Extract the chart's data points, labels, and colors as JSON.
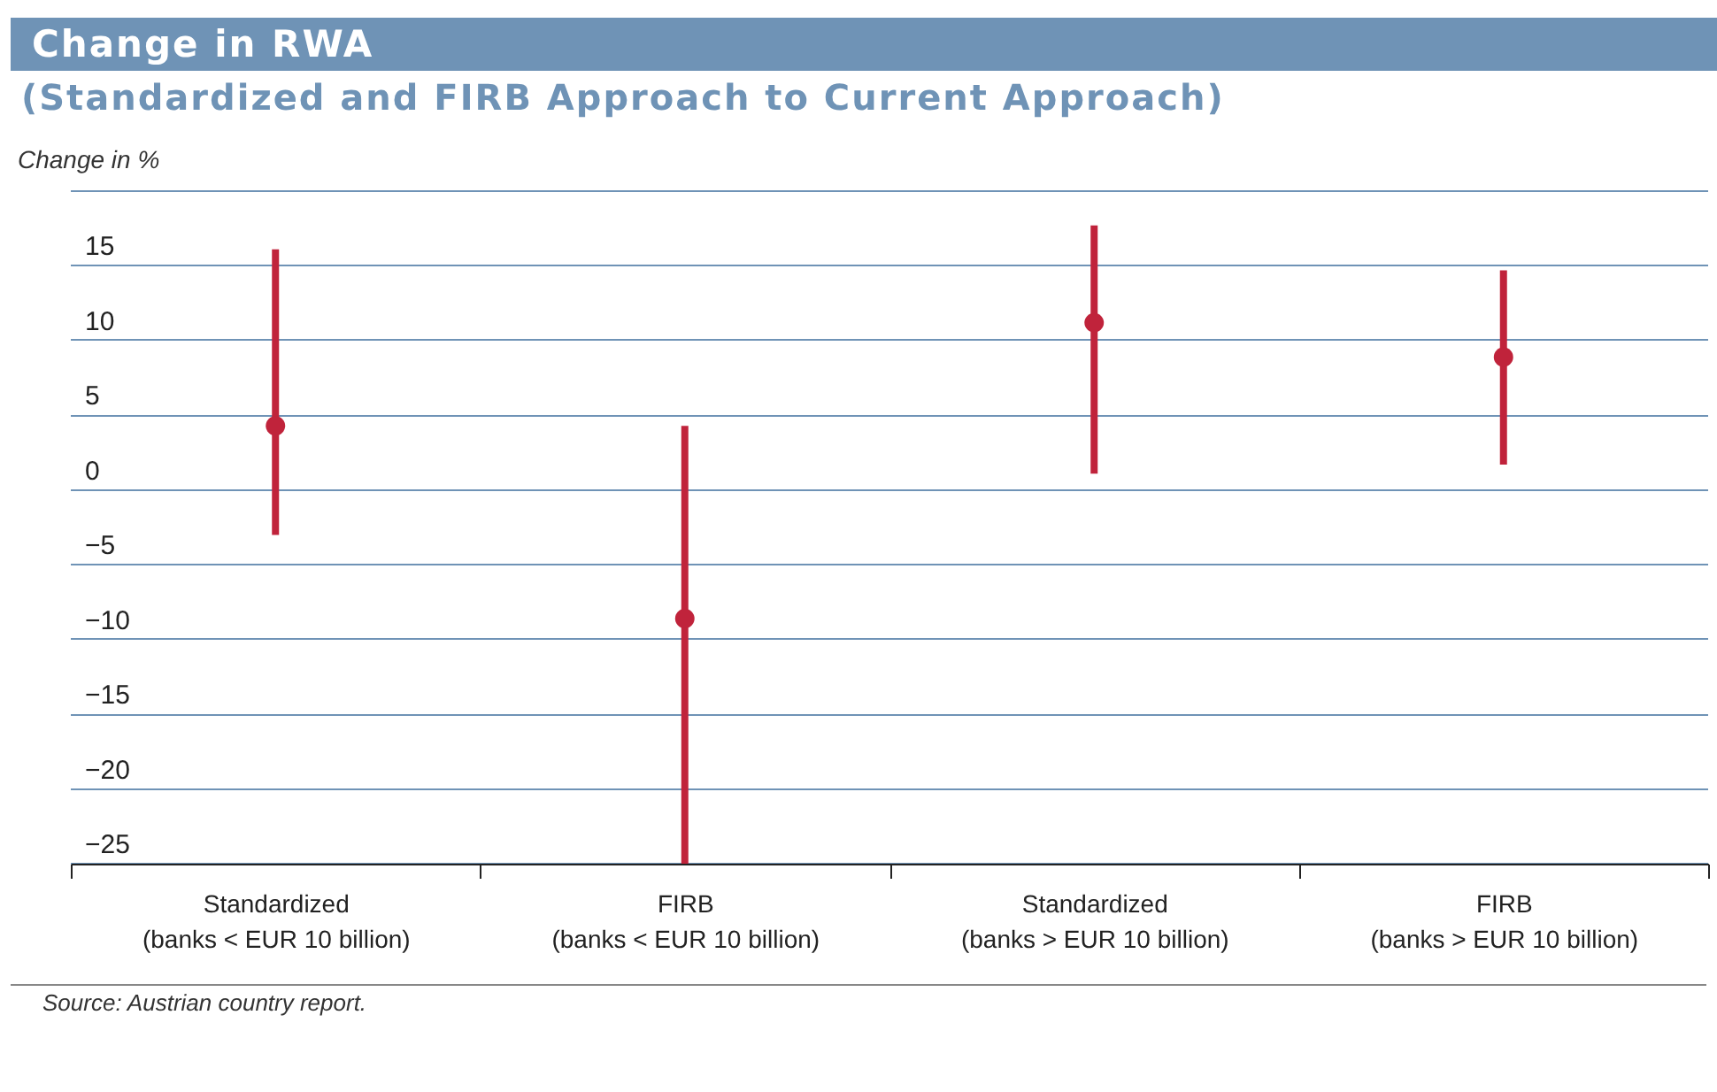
{
  "chart_data": {
    "type": "scatter",
    "title": "Change in RWA",
    "subtitle": "(Standardized and FIRB Approach to Current Approach)",
    "ylabel": "Change in %",
    "categories": [
      "Standardized\n(banks < EUR 10 billion)",
      "FIRB\n(banks < EUR 10 billion)",
      "Standardized\n(banks > EUR 10 billion)",
      "FIRB\n(banks > EUR 10 billion)"
    ],
    "series": [
      {
        "color": "#c0233b",
        "values": [
          4.3,
          -8.6,
          11.2,
          8.9
        ],
        "errors": [
          [
            -3.0,
            16.1
          ],
          [
            -25,
            4.3
          ],
          [
            1.1,
            17.7
          ],
          [
            1.7,
            14.7
          ]
        ]
      }
    ],
    "ylim": [
      -25,
      20
    ],
    "yticks": [
      -25,
      -20,
      -15,
      -10,
      -5,
      0,
      5,
      10,
      15,
      {
        "value": 20,
        "label": null
      }
    ],
    "grid": "y",
    "marker": "circle",
    "legend": false,
    "annotations": [
      "Source: Austrian country report."
    ]
  }
}
